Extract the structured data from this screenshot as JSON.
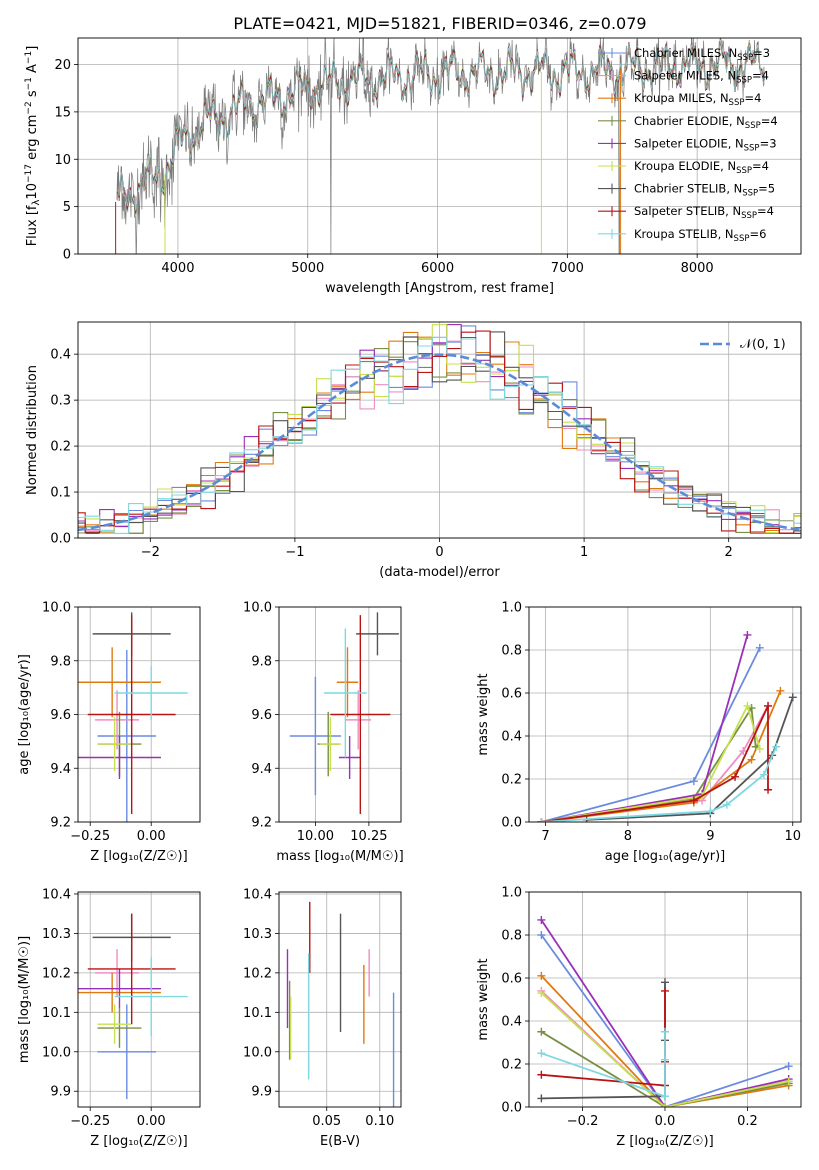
{
  "title": "PLATE=0421, MJD=51821, FIBERID=0346, z=0.079",
  "colors": {
    "Chabrier MILES": "#6a8be0",
    "Salpeter MILES": "#f08cc0",
    "Kroupa MILES": "#e07a10",
    "Chabrier ELODIE": "#7a8f46",
    "Salpeter ELODIE": "#9a30b8",
    "Kroupa ELODIE": "#c8e050",
    "Chabrier STELIB": "#555555",
    "Salpeter STELIB": "#b81414",
    "Kroupa STELIB": "#7fd8e0",
    "gaussian": "#5b8bd6"
  },
  "chart_data": [
    {
      "id": "spectrum",
      "type": "line",
      "xlabel": "wavelength [Angstrom, rest frame]",
      "ylabel": "Flux [f$_\\lambda$10$^{-17}$ erg cm$^{-2}$ s$^{-1}$ A$^{-1}$]",
      "ylabel_parts": [
        "Flux [f",
        "λ",
        "10",
        "−17",
        " erg cm",
        "−2",
        " s",
        "−1",
        " A",
        "−1",
        "]"
      ],
      "xlim": [
        3230,
        8800
      ],
      "ylim": [
        0,
        22.8
      ],
      "xticks": [
        "4000",
        "5000",
        "6000",
        "7000",
        "8000"
      ],
      "yticks": [
        "0",
        "5",
        "10",
        "15",
        "20"
      ],
      "continuum_knots": [
        [
          3520,
          5.5
        ],
        [
          3700,
          7.2
        ],
        [
          3900,
          8.5
        ],
        [
          4000,
          11.5
        ],
        [
          4200,
          13.8
        ],
        [
          4500,
          15.5
        ],
        [
          5000,
          17.6
        ],
        [
          5500,
          18.6
        ],
        [
          6000,
          19.0
        ],
        [
          6500,
          19.2
        ],
        [
          7000,
          19.2
        ],
        [
          7500,
          19.6
        ],
        [
          8000,
          19.9
        ],
        [
          8500,
          20.0
        ]
      ],
      "legend": [
        {
          "label": "Chabrier MILES, N",
          "sub": "SSP",
          "n": "=3",
          "model": "Chabrier MILES"
        },
        {
          "label": "Salpeter MILES, N",
          "sub": "SSP",
          "n": "=4",
          "model": "Salpeter MILES"
        },
        {
          "label": "Kroupa MILES, N",
          "sub": "SSP",
          "n": "=4",
          "model": "Kroupa MILES"
        },
        {
          "label": "Chabrier ELODIE, N",
          "sub": "SSP",
          "n": "=4",
          "model": "Chabrier ELODIE"
        },
        {
          "label": "Salpeter ELODIE, N",
          "sub": "SSP",
          "n": "=3",
          "model": "Salpeter ELODIE"
        },
        {
          "label": "Kroupa ELODIE, N",
          "sub": "SSP",
          "n": "=4",
          "model": "Kroupa ELODIE"
        },
        {
          "label": "Chabrier STELIB, N",
          "sub": "SSP",
          "n": "=5",
          "model": "Chabrier STELIB"
        },
        {
          "label": "Salpeter STELIB, N",
          "sub": "SSP",
          "n": "=4",
          "model": "Salpeter STELIB"
        },
        {
          "label": "Kroupa STELIB, N",
          "sub": "SSP",
          "n": "=6",
          "model": "Kroupa STELIB"
        }
      ]
    },
    {
      "id": "residuals",
      "type": "histogram",
      "xlabel": "(data-model)/error",
      "ylabel": "Normed distribution",
      "xlim": [
        -2.5,
        2.5
      ],
      "ylim": [
        0,
        0.47
      ],
      "xticks": [
        "−2",
        "−1",
        "0",
        "1",
        "2"
      ],
      "yticks": [
        "0.0",
        "0.1",
        "0.2",
        "0.3",
        "0.4"
      ],
      "bin_width": 0.1,
      "legend": [
        {
          "label": "𝒩(0, 1)",
          "model": "gaussian"
        }
      ]
    },
    {
      "id": "age_vs_Z",
      "type": "scatter",
      "xlabel": "Z [log₁₀(Z/Z☉)]",
      "ylabel": "age  [log₁₀(age/yr)]",
      "xlim": [
        -0.3,
        0.2
      ],
      "ylim": [
        9.2,
        10.0
      ],
      "xticks": [
        "−0.25",
        "0.00"
      ],
      "yticks": [
        "9.2",
        "9.4",
        "9.6",
        "9.8",
        "10.0"
      ],
      "points": [
        {
          "model": "Chabrier MILES",
          "x": -0.1,
          "xerr": 0.12,
          "y": 9.52,
          "yerr": 0.32
        },
        {
          "model": "Salpeter MILES",
          "x": -0.14,
          "xerr": 0.09,
          "y": 9.58,
          "yerr": 0.11
        },
        {
          "model": "Kroupa MILES",
          "x": -0.16,
          "xerr": 0.2,
          "y": 9.72,
          "yerr": 0.13
        },
        {
          "model": "Chabrier ELODIE",
          "x": -0.13,
          "xerr": 0.09,
          "y": 9.49,
          "yerr": 0.12
        },
        {
          "model": "Salpeter ELODIE",
          "x": -0.13,
          "xerr": 0.17,
          "y": 9.44,
          "yerr": 0.08
        },
        {
          "model": "Kroupa ELODIE",
          "x": -0.15,
          "xerr": 0.07,
          "y": 9.49,
          "yerr": 0.1
        },
        {
          "model": "Chabrier STELIB",
          "x": -0.08,
          "xerr": 0.16,
          "y": 9.9,
          "yerr": 0.08
        },
        {
          "model": "Salpeter STELIB",
          "x": -0.08,
          "xerr": 0.18,
          "y": 9.6,
          "yerr": 0.37
        },
        {
          "model": "Kroupa STELIB",
          "x": 0.0,
          "xerr": 0.15,
          "y": 9.68,
          "yerr": 0.1
        }
      ]
    },
    {
      "id": "age_vs_mass",
      "type": "scatter",
      "xlabel": "mass [log₁₀(M/M☉)]",
      "ylabel": "",
      "xlim": [
        9.83,
        10.4
      ],
      "ylim": [
        9.2,
        10.0
      ],
      "xticks": [
        "10.00",
        "10.25"
      ],
      "yticks": [
        "9.2",
        "9.4",
        "9.6",
        "9.8",
        "10.0"
      ],
      "points": [
        {
          "model": "Chabrier MILES",
          "x": 10.0,
          "xerr": 0.12,
          "y": 9.52,
          "yerr": 0.22
        },
        {
          "model": "Salpeter MILES",
          "x": 10.2,
          "xerr": 0.06,
          "y": 9.58,
          "yerr": 0.11
        },
        {
          "model": "Kroupa MILES",
          "x": 10.15,
          "xerr": 0.05,
          "y": 9.72,
          "yerr": 0.13
        },
        {
          "model": "Chabrier ELODIE",
          "x": 10.06,
          "xerr": 0.05,
          "y": 9.49,
          "yerr": 0.12
        },
        {
          "model": "Salpeter ELODIE",
          "x": 10.16,
          "xerr": 0.05,
          "y": 9.44,
          "yerr": 0.08
        },
        {
          "model": "Kroupa ELODIE",
          "x": 10.07,
          "xerr": 0.05,
          "y": 9.49,
          "yerr": 0.1
        },
        {
          "model": "Chabrier STELIB",
          "x": 10.29,
          "xerr": 0.1,
          "y": 9.9,
          "yerr": 0.08
        },
        {
          "model": "Salpeter STELIB",
          "x": 10.21,
          "xerr": 0.14,
          "y": 9.6,
          "yerr": 0.37
        },
        {
          "model": "Kroupa STELIB",
          "x": 10.14,
          "xerr": 0.1,
          "y": 9.68,
          "yerr": 0.24
        }
      ]
    },
    {
      "id": "weight_vs_age",
      "type": "line",
      "xlabel": "age  [log₁₀(age/yr)]",
      "ylabel": "mass weight",
      "xlim": [
        6.8,
        10.1
      ],
      "ylim": [
        0,
        1.0
      ],
      "xticks": [
        "7",
        "8",
        "9",
        "10"
      ],
      "yticks": [
        "0.0",
        "0.2",
        "0.4",
        "0.6",
        "0.8",
        "1.0"
      ],
      "series": [
        {
          "model": "Chabrier MILES",
          "x": [
            6.95,
            8.8,
            9.6
          ],
          "y": [
            0.0,
            0.19,
            0.81
          ]
        },
        {
          "model": "Salpeter MILES",
          "x": [
            6.95,
            8.9,
            9.4,
            9.7
          ],
          "y": [
            0.0,
            0.1,
            0.33,
            0.54
          ]
        },
        {
          "model": "Kroupa MILES",
          "x": [
            6.95,
            8.8,
            9.5,
            9.85
          ],
          "y": [
            0.0,
            0.09,
            0.29,
            0.61
          ]
        },
        {
          "model": "Chabrier ELODIE",
          "x": [
            6.95,
            8.8,
            9.5,
            9.55
          ],
          "y": [
            0.0,
            0.11,
            0.53,
            0.35
          ]
        },
        {
          "model": "Salpeter ELODIE",
          "x": [
            6.95,
            8.9,
            9.45
          ],
          "y": [
            0.0,
            0.13,
            0.87
          ]
        },
        {
          "model": "Kroupa ELODIE",
          "x": [
            6.95,
            8.9,
            9.45,
            9.6
          ],
          "y": [
            0.0,
            0.12,
            0.54,
            0.34
          ]
        },
        {
          "model": "Chabrier STELIB",
          "x": [
            7.5,
            9.0,
            9.75,
            10.0
          ],
          "y": [
            0.01,
            0.04,
            0.31,
            0.58
          ]
        },
        {
          "model": "Salpeter STELIB",
          "x": [
            6.95,
            8.8,
            9.3,
            9.7,
            9.7
          ],
          "y": [
            0.0,
            0.1,
            0.21,
            0.54,
            0.15
          ]
        },
        {
          "model": "Kroupa STELIB",
          "x": [
            6.95,
            9.0,
            9.2,
            9.65,
            9.8
          ],
          "y": [
            0.0,
            0.05,
            0.08,
            0.22,
            0.35
          ]
        }
      ]
    },
    {
      "id": "mass_vs_Z",
      "type": "scatter",
      "xlabel": "Z [log₁₀(Z/Z☉)]",
      "ylabel": "mass [log₁₀(M/M☉)]",
      "xlim": [
        -0.3,
        0.2
      ],
      "ylim": [
        9.86,
        10.405
      ],
      "xticks": [
        "−0.25",
        "0.00"
      ],
      "yticks": [
        "9.9",
        "10.0",
        "10.1",
        "10.2",
        "10.3",
        "10.4"
      ],
      "points": [
        {
          "model": "Chabrier MILES",
          "x": -0.1,
          "xerr": 0.12,
          "y": 10.0,
          "yerr": 0.12
        },
        {
          "model": "Salpeter MILES",
          "x": -0.14,
          "xerr": 0.09,
          "y": 10.2,
          "yerr": 0.06
        },
        {
          "model": "Kroupa MILES",
          "x": -0.16,
          "xerr": 0.2,
          "y": 10.15,
          "yerr": 0.05
        },
        {
          "model": "Chabrier ELODIE",
          "x": -0.13,
          "xerr": 0.09,
          "y": 10.06,
          "yerr": 0.05
        },
        {
          "model": "Salpeter ELODIE",
          "x": -0.13,
          "xerr": 0.17,
          "y": 10.16,
          "yerr": 0.05
        },
        {
          "model": "Kroupa ELODIE",
          "x": -0.15,
          "xerr": 0.07,
          "y": 10.07,
          "yerr": 0.05
        },
        {
          "model": "Chabrier STELIB",
          "x": -0.08,
          "xerr": 0.16,
          "y": 10.29,
          "yerr": 0.06
        },
        {
          "model": "Salpeter STELIB",
          "x": -0.08,
          "xerr": 0.18,
          "y": 10.21,
          "yerr": 0.14
        },
        {
          "model": "Kroupa STELIB",
          "x": 0.0,
          "xerr": 0.15,
          "y": 10.14,
          "yerr": 0.1
        }
      ]
    },
    {
      "id": "mass_vs_ebv",
      "type": "scatter",
      "xlabel": "E(B-V)",
      "ylabel": "",
      "xlim": [
        0.005,
        0.12
      ],
      "ylim": [
        9.86,
        10.405
      ],
      "xticks": [
        "0.05",
        "0.10"
      ],
      "yticks": [
        "9.9",
        "10.0",
        "10.1",
        "10.2",
        "10.3",
        "10.4"
      ],
      "points": [
        {
          "model": "Chabrier MILES",
          "x": 0.113,
          "y": 10.0,
          "yerr": 0.15
        },
        {
          "model": "Salpeter MILES",
          "x": 0.09,
          "y": 10.2,
          "yerr": 0.06
        },
        {
          "model": "Kroupa MILES",
          "x": 0.085,
          "y": 10.12,
          "yerr": 0.1
        },
        {
          "model": "Chabrier ELODIE",
          "x": 0.015,
          "y": 10.08,
          "yerr": 0.1
        },
        {
          "model": "Salpeter ELODIE",
          "x": 0.013,
          "y": 10.16,
          "yerr": 0.1
        },
        {
          "model": "Kroupa ELODIE",
          "x": 0.016,
          "y": 10.06,
          "yerr": 0.08
        },
        {
          "model": "Chabrier STELIB",
          "x": 0.063,
          "y": 10.2,
          "yerr": 0.15
        },
        {
          "model": "Salpeter STELIB",
          "x": 0.034,
          "y": 10.29,
          "yerr": 0.09
        },
        {
          "model": "Kroupa STELIB",
          "x": 0.033,
          "y": 10.09,
          "yerr": 0.16
        }
      ]
    },
    {
      "id": "weight_vs_Z",
      "type": "line",
      "xlabel": "Z [log₁₀(Z/Z☉)]",
      "ylabel": "mass weight",
      "xlim": [
        -0.33,
        0.33
      ],
      "ylim": [
        0,
        1.0
      ],
      "xticks": [
        "−0.2",
        "0.0",
        "0.2"
      ],
      "yticks": [
        "0.0",
        "0.2",
        "0.4",
        "0.6",
        "0.8",
        "1.0"
      ],
      "series": [
        {
          "model": "Chabrier MILES",
          "x": [
            -0.3,
            0.0,
            0.3
          ],
          "y": [
            0.8,
            0.0,
            0.19
          ]
        },
        {
          "model": "Salpeter MILES",
          "x": [
            -0.3,
            0.0,
            0.3
          ],
          "y": [
            0.54,
            0.0,
            0.12
          ]
        },
        {
          "model": "Kroupa MILES",
          "x": [
            -0.3,
            0.0,
            0.3
          ],
          "y": [
            0.61,
            0.0,
            0.1
          ]
        },
        {
          "model": "Chabrier ELODIE",
          "x": [
            -0.3,
            0.0,
            0.3
          ],
          "y": [
            0.35,
            0.0,
            0.11
          ]
        },
        {
          "model": "Salpeter ELODIE",
          "x": [
            -0.3,
            0.0,
            0.3
          ],
          "y": [
            0.87,
            0.0,
            0.13
          ]
        },
        {
          "model": "Kroupa ELODIE",
          "x": [
            -0.3,
            0.0,
            0.3
          ],
          "y": [
            0.53,
            0.0,
            0.12
          ]
        },
        {
          "model": "Chabrier STELIB",
          "x": [
            -0.3,
            0.0,
            0.0,
            0.0
          ],
          "y": [
            0.04,
            0.05,
            0.31,
            0.58
          ]
        },
        {
          "model": "Salpeter STELIB",
          "x": [
            -0.3,
            0.0,
            0.0,
            0.0
          ],
          "y": [
            0.15,
            0.1,
            0.21,
            0.54
          ]
        },
        {
          "model": "Kroupa STELIB",
          "x": [
            -0.3,
            0.0,
            0.0,
            0.0
          ],
          "y": [
            0.25,
            0.05,
            0.22,
            0.35
          ]
        }
      ]
    }
  ]
}
